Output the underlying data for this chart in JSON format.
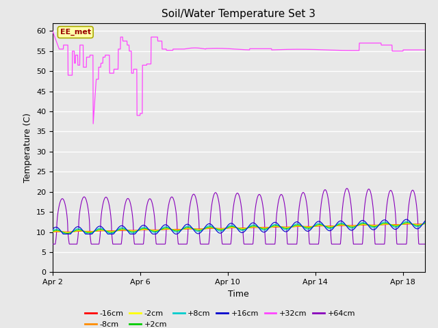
{
  "title": "Soil/Water Temperature Set 3",
  "xlabel": "Time",
  "ylabel": "Temperature (C)",
  "ylim": [
    0,
    62
  ],
  "yticks": [
    0,
    5,
    10,
    15,
    20,
    25,
    30,
    35,
    40,
    45,
    50,
    55,
    60
  ],
  "xlim_start": 0,
  "xlim_end": 17,
  "xtick_positions": [
    0,
    4,
    8,
    12,
    16
  ],
  "xtick_labels": [
    "Apr 2",
    "Apr 6",
    "Apr 10",
    "Apr 14",
    "Apr 18"
  ],
  "bg_color": "#e8e8e8",
  "fig_color": "#e8e8e8",
  "grid_color": "white",
  "legend_entries": [
    {
      "label": "-16cm",
      "color": "#ff0000"
    },
    {
      "label": "-8cm",
      "color": "#ff8c00"
    },
    {
      "label": "-2cm",
      "color": "#ffff00"
    },
    {
      "label": "+2cm",
      "color": "#00cc00"
    },
    {
      "label": "+8cm",
      "color": "#00cccc"
    },
    {
      "label": "+16cm",
      "color": "#0000cc"
    },
    {
      "label": "+32cm",
      "color": "#ff44ff"
    },
    {
      "label": "+64cm",
      "color": "#8800bb"
    }
  ],
  "annotation_text": "EE_met",
  "title_fontsize": 11,
  "axis_fontsize": 9,
  "tick_fontsize": 8
}
